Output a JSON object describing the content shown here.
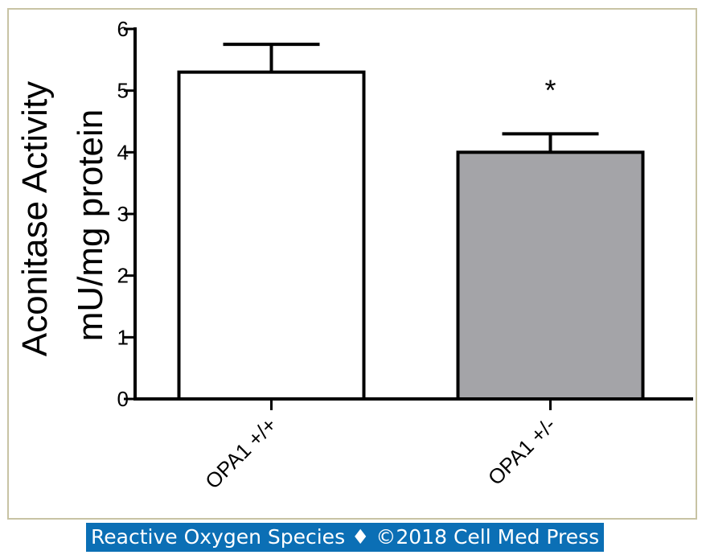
{
  "chart_data": {
    "type": "bar",
    "title": "",
    "ylabel_lines": [
      "Aconitase Activity",
      "mU/mg protein"
    ],
    "categories": [
      "OPA1 +/+",
      "OPA1 +/-"
    ],
    "values": [
      5.3,
      4.0
    ],
    "errors": [
      0.45,
      0.3
    ],
    "bar_colors": [
      "#ffffff",
      "#a4a4a8"
    ],
    "ylim": [
      0,
      6
    ],
    "yticks": [
      0,
      1,
      2,
      3,
      4,
      5,
      6
    ],
    "annotations": [
      "",
      "*"
    ],
    "grid": false
  },
  "footer": {
    "text": "Reactive Oxygen Species ♦ ©2018 Cell Med Press"
  }
}
